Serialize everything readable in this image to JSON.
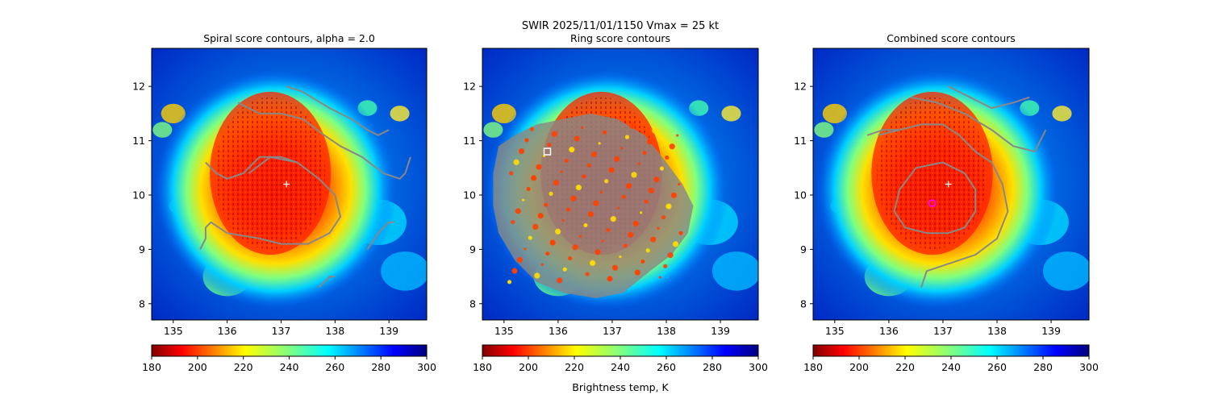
{
  "figure": {
    "suptitle_line1": "SWIR  2025/11/01/1150    Vmax = 25 kt",
    "colorbar_label": "Brightness temp, K"
  },
  "chart_data": [
    {
      "type": "heatmap",
      "title": "Spiral score contours, alpha =  2.0",
      "xlim": [
        134.6,
        139.7
      ],
      "ylim": [
        7.7,
        12.7
      ],
      "x_ticks": [
        135,
        136,
        137,
        138,
        139
      ],
      "y_ticks": [
        8,
        9,
        10,
        11,
        12
      ],
      "contour_color": "#888888",
      "markers": [
        {
          "symbol": "plus",
          "x": 137.1,
          "y": 10.2,
          "color": "#ffffff"
        }
      ],
      "contours": [
        [
          [
            136.2,
            11.7
          ],
          [
            136.6,
            11.5
          ],
          [
            137.0,
            11.5
          ],
          [
            137.4,
            11.4
          ],
          [
            137.8,
            11.1
          ],
          [
            138.1,
            10.9
          ],
          [
            138.5,
            10.7
          ],
          [
            138.9,
            10.4
          ],
          [
            139.2,
            10.3
          ],
          [
            139.3,
            10.4
          ],
          [
            139.4,
            10.7
          ]
        ],
        [
          [
            136.4,
            10.4
          ],
          [
            136.8,
            10.7
          ],
          [
            137.3,
            10.6
          ],
          [
            137.7,
            10.3
          ],
          [
            138.0,
            10.0
          ],
          [
            138.1,
            9.6
          ],
          [
            137.9,
            9.3
          ],
          [
            137.5,
            9.1
          ],
          [
            137.0,
            9.1
          ],
          [
            136.6,
            9.2
          ],
          [
            136.0,
            9.3
          ],
          [
            135.7,
            9.5
          ],
          [
            135.6,
            9.4
          ],
          [
            135.6,
            9.2
          ],
          [
            135.5,
            9.0
          ]
        ],
        [
          [
            135.6,
            10.6
          ],
          [
            135.8,
            10.4
          ],
          [
            136.0,
            10.3
          ],
          [
            136.3,
            10.4
          ],
          [
            136.6,
            10.7
          ],
          [
            137.0,
            10.7
          ],
          [
            137.3,
            10.6
          ]
        ],
        [
          [
            137.1,
            12.0
          ],
          [
            137.4,
            11.9
          ],
          [
            137.9,
            11.6
          ],
          [
            138.3,
            11.4
          ],
          [
            138.6,
            11.2
          ],
          [
            138.8,
            11.1
          ],
          [
            139.0,
            11.2
          ]
        ],
        [
          [
            138.6,
            9.0
          ],
          [
            138.8,
            9.3
          ],
          [
            139.0,
            9.5
          ],
          [
            139.1,
            9.5
          ]
        ],
        [
          [
            137.7,
            8.3
          ],
          [
            137.9,
            8.5
          ],
          [
            138.0,
            8.5
          ]
        ]
      ]
    },
    {
      "type": "heatmap",
      "title": "Ring score contours",
      "xlim": [
        134.6,
        139.7
      ],
      "ylim": [
        7.7,
        12.7
      ],
      "x_ticks": [
        135,
        136,
        137,
        138,
        139
      ],
      "y_ticks": [
        8,
        9,
        10,
        11,
        12
      ],
      "contour_color": "#888888",
      "markers": [
        {
          "symbol": "square",
          "x": 135.8,
          "y": 10.8,
          "color": "#ffffff"
        }
      ],
      "ring_region": [
        [
          134.9,
          10.9
        ],
        [
          135.2,
          11.1
        ],
        [
          135.6,
          11.3
        ],
        [
          136.1,
          11.4
        ],
        [
          136.6,
          11.5
        ],
        [
          137.1,
          11.4
        ],
        [
          137.6,
          11.1
        ],
        [
          138.0,
          10.6
        ],
        [
          138.3,
          10.2
        ],
        [
          138.5,
          9.8
        ],
        [
          138.4,
          9.3
        ],
        [
          138.1,
          8.9
        ],
        [
          137.7,
          8.6
        ],
        [
          137.2,
          8.2
        ],
        [
          136.7,
          8.1
        ],
        [
          136.1,
          8.2
        ],
        [
          135.6,
          8.4
        ],
        [
          135.2,
          8.8
        ],
        [
          134.9,
          9.3
        ],
        [
          134.8,
          9.8
        ],
        [
          134.8,
          10.4
        ]
      ]
    },
    {
      "type": "heatmap",
      "title": "Combined score contours",
      "xlim": [
        134.6,
        139.7
      ],
      "ylim": [
        7.7,
        12.7
      ],
      "x_ticks": [
        135,
        136,
        137,
        138,
        139
      ],
      "y_ticks": [
        8,
        9,
        10,
        11,
        12
      ],
      "contour_color": "#888888",
      "markers": [
        {
          "symbol": "plus",
          "x": 137.1,
          "y": 10.2,
          "color": "#ffffff"
        },
        {
          "symbol": "circle",
          "x": 136.8,
          "y": 9.85,
          "color": "#ff00ff"
        }
      ],
      "contours": [
        [
          [
            136.5,
            10.5
          ],
          [
            137.0,
            10.6
          ],
          [
            137.4,
            10.4
          ],
          [
            137.6,
            10.1
          ],
          [
            137.6,
            9.7
          ],
          [
            137.4,
            9.4
          ],
          [
            137.1,
            9.3
          ],
          [
            136.7,
            9.3
          ],
          [
            136.3,
            9.4
          ],
          [
            136.1,
            9.7
          ],
          [
            136.2,
            10.1
          ],
          [
            136.5,
            10.5
          ]
        ],
        [
          [
            135.8,
            11.1
          ],
          [
            136.2,
            11.2
          ],
          [
            136.6,
            11.3
          ],
          [
            137.0,
            11.3
          ],
          [
            137.3,
            11.1
          ],
          [
            137.6,
            10.8
          ],
          [
            137.9,
            10.6
          ],
          [
            138.1,
            10.2
          ],
          [
            138.2,
            9.7
          ],
          [
            138.0,
            9.2
          ],
          [
            137.6,
            8.9
          ],
          [
            137.0,
            8.7
          ],
          [
            136.7,
            8.6
          ],
          [
            136.6,
            8.3
          ]
        ],
        [
          [
            135.6,
            11.1
          ],
          [
            135.9,
            11.2
          ],
          [
            136.2,
            11.2
          ]
        ],
        [
          [
            136.4,
            11.8
          ],
          [
            136.9,
            11.7
          ],
          [
            137.4,
            11.5
          ],
          [
            137.9,
            11.2
          ],
          [
            138.3,
            10.9
          ],
          [
            138.7,
            10.8
          ],
          [
            138.8,
            11.0
          ],
          [
            138.9,
            11.2
          ]
        ],
        [
          [
            137.1,
            12.0
          ],
          [
            137.5,
            11.8
          ],
          [
            137.9,
            11.6
          ],
          [
            138.3,
            11.7
          ],
          [
            138.6,
            11.8
          ]
        ]
      ]
    }
  ],
  "colorbars": [
    {
      "ticks": [
        180,
        200,
        220,
        240,
        260,
        280,
        300
      ],
      "range": [
        180,
        300
      ],
      "show_label": false
    },
    {
      "ticks": [
        180,
        200,
        220,
        240,
        260,
        280,
        300
      ],
      "range": [
        180,
        300
      ],
      "show_label": true
    },
    {
      "ticks": [
        180,
        200,
        220,
        240,
        260,
        280,
        300
      ],
      "range": [
        180,
        300
      ],
      "show_label": false
    }
  ],
  "colormap": "jet_r"
}
